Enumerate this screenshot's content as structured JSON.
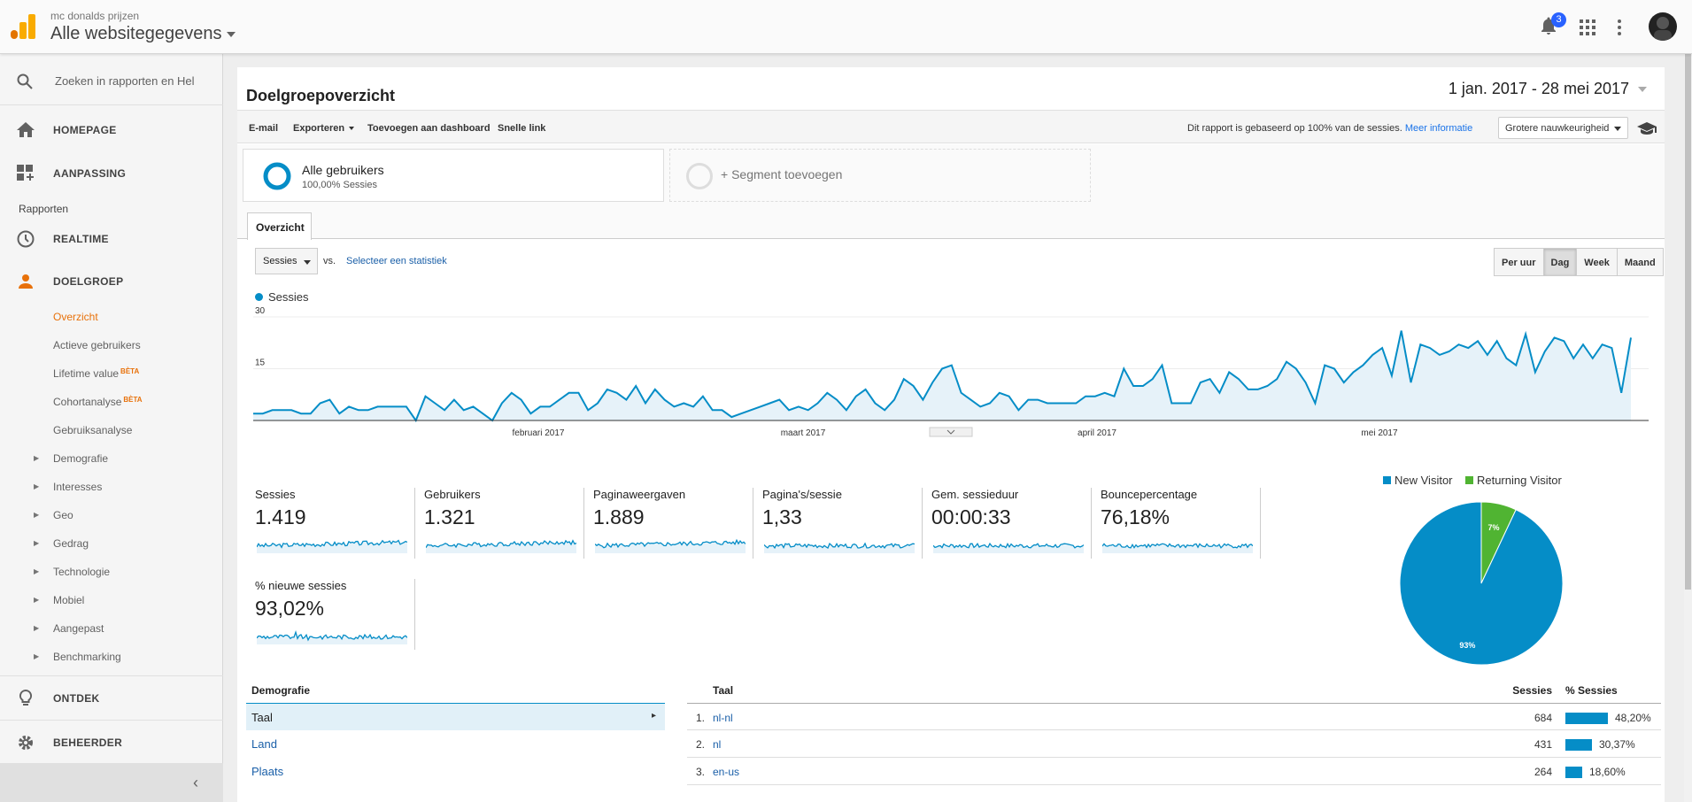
{
  "header": {
    "account_name": "mc donalds prijzen",
    "property_name": "Alle websitegegevens",
    "notification_count": "3",
    "icons": [
      "analytics-logo-icon",
      "bell-icon",
      "apps-grid-icon",
      "more-vert-icon",
      "avatar"
    ]
  },
  "sidebar": {
    "search_placeholder": "Zoeken in rapporten en Hel",
    "main_items": [
      {
        "label": "HOMEPAGE",
        "icon": "home-icon"
      },
      {
        "label": "AANPASSING",
        "icon": "dashboard-icon"
      }
    ],
    "reports_heading": "Rapporten",
    "realtime_label": "REALTIME",
    "audience_label": "DOELGROEP",
    "audience_subitems": [
      {
        "label": "Overzicht",
        "active": true
      },
      {
        "label": "Actieve gebruikers"
      },
      {
        "label": "Lifetime value",
        "beta": "BÈTA"
      },
      {
        "label": "Cohortanalyse",
        "beta": "BÈTA"
      },
      {
        "label": "Gebruiksanalyse"
      }
    ],
    "expandable_items": [
      "Demografie",
      "Interesses",
      "Geo",
      "Gedrag",
      "Technologie",
      "Mobiel",
      "Aangepast",
      "Benchmarking"
    ],
    "discover_label": "ONTDEK",
    "admin_label": "BEHEERDER"
  },
  "report": {
    "title": "Doelgroepoverzicht",
    "date_range": "1 jan. 2017 - 28 mei 2017",
    "toolbar": {
      "email": "E-mail",
      "export": "Exporteren",
      "add_dashboard": "Toevoegen aan dashboard",
      "shortlink": "Snelle link",
      "sample_note": "Dit rapport is gebaseerd op 100% van de sessies.",
      "more_info": "Meer informatie",
      "precision": "Grotere nauwkeurigheid"
    },
    "segment": {
      "name": "Alle gebruikers",
      "sub": "100,00% Sessies",
      "add": "+ Segment toevoegen"
    },
    "tab": "Overzicht",
    "metric_select": "Sessies",
    "vs": "vs.",
    "compare": "Selecteer een statistiek",
    "granularity": [
      "Per uur",
      "Dag",
      "Week",
      "Maand"
    ],
    "active_granularity": "Dag",
    "chart_legend": "Sessies"
  },
  "chart_data": {
    "type": "area",
    "series": [
      {
        "name": "Sessies",
        "values": [
          2,
          2,
          3,
          3,
          3,
          2,
          2,
          5,
          6,
          2,
          4,
          3,
          3,
          4,
          4,
          4,
          4,
          0,
          7,
          5,
          3,
          6,
          3,
          4,
          2,
          0,
          5,
          8,
          6,
          2,
          4,
          4,
          6,
          8,
          8,
          3,
          5,
          9,
          8,
          6,
          10,
          5,
          9,
          6,
          4,
          5,
          4,
          7,
          3,
          3,
          1,
          2,
          3,
          4,
          5,
          6,
          3,
          4,
          3,
          5,
          8,
          6,
          3,
          7,
          9,
          5,
          3,
          6,
          12,
          10,
          6,
          11,
          15,
          16,
          8,
          6,
          4,
          5,
          8,
          7,
          3,
          6,
          6,
          5,
          5,
          5,
          5,
          7,
          7,
          8,
          7,
          15,
          10,
          10,
          12,
          16,
          5,
          5,
          5,
          11,
          12,
          8,
          14,
          12,
          9,
          9,
          10,
          12,
          17,
          15,
          11,
          5,
          16,
          15,
          11,
          14,
          16,
          19,
          21,
          13,
          26,
          11,
          22,
          21,
          19,
          20,
          22,
          21,
          23,
          19,
          23,
          18,
          16,
          25,
          14,
          20,
          24,
          23,
          18,
          22,
          18,
          22,
          21,
          8,
          24
        ]
      }
    ],
    "x_tick_labels": [
      "februari 2017",
      "maart 2017",
      "april 2017",
      "mei 2017"
    ],
    "y_tick_labels": [
      "15",
      "30"
    ],
    "ylim": [
      0,
      30
    ],
    "color": "#058dc7"
  },
  "metrics": [
    {
      "label": "Sessies",
      "value": "1.419"
    },
    {
      "label": "Gebruikers",
      "value": "1.321"
    },
    {
      "label": "Paginaweergaven",
      "value": "1.889"
    },
    {
      "label": "Pagina's/sessie",
      "value": "1,33"
    },
    {
      "label": "Gem. sessieduur",
      "value": "00:00:33"
    },
    {
      "label": "Bouncepercentage",
      "value": "76,18%"
    },
    {
      "label": "% nieuwe sessies",
      "value": "93,02%"
    }
  ],
  "pie": {
    "type": "pie",
    "legend": [
      {
        "label": "New Visitor",
        "color": "#058dc7",
        "pct": 93,
        "label_text": "93%"
      },
      {
        "label": "Returning Visitor",
        "color": "#50b432",
        "pct": 7,
        "label_text": "7%"
      }
    ]
  },
  "demographics": {
    "heading": "Demografie",
    "items": [
      "Taal",
      "Land",
      "Plaats"
    ],
    "selected": "Taal"
  },
  "table": {
    "col_key": "Taal",
    "col_sessions": "Sessies",
    "col_pct": "% Sessies",
    "rows": [
      {
        "idx": "1.",
        "key": "nl-nl",
        "sessions": "684",
        "pct": "48,20%",
        "pct_value": 48.2
      },
      {
        "idx": "2.",
        "key": "nl",
        "sessions": "431",
        "pct": "30,37%",
        "pct_value": 30.37
      },
      {
        "idx": "3.",
        "key": "en-us",
        "sessions": "264",
        "pct": "18,60%",
        "pct_value": 18.6
      }
    ]
  }
}
